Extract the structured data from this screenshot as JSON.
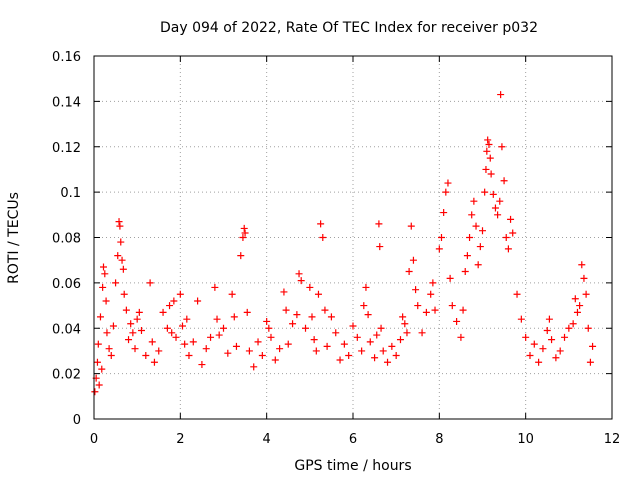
{
  "chart_data": {
    "type": "scatter",
    "title": "Day 094 of 2022, Rate Of TEC Index for receiver p032",
    "xlabel": "GPS time / hours",
    "ylabel": "ROTI / TECUs",
    "xlim": [
      0,
      12
    ],
    "ylim": [
      0,
      0.16
    ],
    "xticks": [
      0,
      2,
      4,
      6,
      8,
      10,
      12
    ],
    "yticks": [
      0,
      0.02,
      0.04,
      0.06,
      0.08,
      0.1,
      0.12,
      0.14,
      0.16
    ],
    "xtick_labels": [
      "0",
      "2",
      "4",
      "6",
      "8",
      "10",
      "12"
    ],
    "ytick_labels": [
      "0",
      "0.02",
      "0.04",
      "0.06",
      "0.08",
      "0.1",
      "0.12",
      "0.14",
      "0.16"
    ],
    "grid": true,
    "marker": "plus",
    "color": "#ff0000",
    "series": [
      {
        "name": "ROTI",
        "points": [
          [
            0.02,
            0.012
          ],
          [
            0.05,
            0.018
          ],
          [
            0.08,
            0.025
          ],
          [
            0.1,
            0.033
          ],
          [
            0.12,
            0.015
          ],
          [
            0.15,
            0.045
          ],
          [
            0.18,
            0.022
          ],
          [
            0.2,
            0.058
          ],
          [
            0.22,
            0.067
          ],
          [
            0.25,
            0.064
          ],
          [
            0.28,
            0.052
          ],
          [
            0.3,
            0.038
          ],
          [
            0.35,
            0.031
          ],
          [
            0.4,
            0.028
          ],
          [
            0.45,
            0.041
          ],
          [
            0.5,
            0.06
          ],
          [
            0.55,
            0.072
          ],
          [
            0.58,
            0.087
          ],
          [
            0.6,
            0.085
          ],
          [
            0.62,
            0.078
          ],
          [
            0.65,
            0.07
          ],
          [
            0.68,
            0.066
          ],
          [
            0.7,
            0.055
          ],
          [
            0.75,
            0.048
          ],
          [
            0.8,
            0.035
          ],
          [
            0.85,
            0.042
          ],
          [
            0.9,
            0.038
          ],
          [
            0.95,
            0.031
          ],
          [
            1.0,
            0.044
          ],
          [
            1.05,
            0.047
          ],
          [
            1.1,
            0.039
          ],
          [
            1.2,
            0.028
          ],
          [
            1.3,
            0.06
          ],
          [
            1.35,
            0.034
          ],
          [
            1.4,
            0.025
          ],
          [
            1.5,
            0.03
          ],
          [
            1.6,
            0.047
          ],
          [
            1.7,
            0.04
          ],
          [
            1.75,
            0.05
          ],
          [
            1.8,
            0.038
          ],
          [
            1.85,
            0.052
          ],
          [
            1.9,
            0.036
          ],
          [
            2.0,
            0.055
          ],
          [
            2.05,
            0.041
          ],
          [
            2.1,
            0.033
          ],
          [
            2.15,
            0.044
          ],
          [
            2.2,
            0.028
          ],
          [
            2.3,
            0.034
          ],
          [
            2.4,
            0.052
          ],
          [
            2.5,
            0.024
          ],
          [
            2.6,
            0.031
          ],
          [
            2.7,
            0.036
          ],
          [
            2.8,
            0.058
          ],
          [
            2.85,
            0.044
          ],
          [
            2.9,
            0.037
          ],
          [
            3.0,
            0.04
          ],
          [
            3.1,
            0.029
          ],
          [
            3.2,
            0.055
          ],
          [
            3.25,
            0.045
          ],
          [
            3.3,
            0.032
          ],
          [
            3.4,
            0.072
          ],
          [
            3.45,
            0.08
          ],
          [
            3.48,
            0.084
          ],
          [
            3.5,
            0.082
          ],
          [
            3.55,
            0.047
          ],
          [
            3.6,
            0.03
          ],
          [
            3.7,
            0.023
          ],
          [
            3.8,
            0.034
          ],
          [
            3.9,
            0.028
          ],
          [
            4.0,
            0.043
          ],
          [
            4.05,
            0.04
          ],
          [
            4.1,
            0.036
          ],
          [
            4.2,
            0.026
          ],
          [
            4.3,
            0.031
          ],
          [
            4.4,
            0.056
          ],
          [
            4.45,
            0.048
          ],
          [
            4.5,
            0.033
          ],
          [
            4.6,
            0.042
          ],
          [
            4.7,
            0.046
          ],
          [
            4.75,
            0.064
          ],
          [
            4.8,
            0.061
          ],
          [
            4.9,
            0.04
          ],
          [
            5.0,
            0.058
          ],
          [
            5.05,
            0.045
          ],
          [
            5.1,
            0.035
          ],
          [
            5.15,
            0.03
          ],
          [
            5.2,
            0.055
          ],
          [
            5.25,
            0.086
          ],
          [
            5.3,
            0.08
          ],
          [
            5.35,
            0.048
          ],
          [
            5.4,
            0.032
          ],
          [
            5.5,
            0.045
          ],
          [
            5.6,
            0.038
          ],
          [
            5.7,
            0.026
          ],
          [
            5.8,
            0.033
          ],
          [
            5.9,
            0.028
          ],
          [
            6.0,
            0.041
          ],
          [
            6.1,
            0.036
          ],
          [
            6.2,
            0.03
          ],
          [
            6.25,
            0.05
          ],
          [
            6.3,
            0.058
          ],
          [
            6.35,
            0.046
          ],
          [
            6.4,
            0.034
          ],
          [
            6.5,
            0.027
          ],
          [
            6.55,
            0.037
          ],
          [
            6.6,
            0.086
          ],
          [
            6.62,
            0.076
          ],
          [
            6.65,
            0.04
          ],
          [
            6.7,
            0.03
          ],
          [
            6.8,
            0.025
          ],
          [
            6.9,
            0.032
          ],
          [
            7.0,
            0.028
          ],
          [
            7.1,
            0.035
          ],
          [
            7.15,
            0.045
          ],
          [
            7.2,
            0.042
          ],
          [
            7.25,
            0.038
          ],
          [
            7.3,
            0.065
          ],
          [
            7.35,
            0.085
          ],
          [
            7.4,
            0.07
          ],
          [
            7.45,
            0.057
          ],
          [
            7.5,
            0.05
          ],
          [
            7.6,
            0.038
          ],
          [
            7.7,
            0.047
          ],
          [
            7.8,
            0.055
          ],
          [
            7.85,
            0.06
          ],
          [
            7.9,
            0.048
          ],
          [
            8.0,
            0.075
          ],
          [
            8.05,
            0.08
          ],
          [
            8.1,
            0.091
          ],
          [
            8.15,
            0.1
          ],
          [
            8.2,
            0.104
          ],
          [
            8.25,
            0.062
          ],
          [
            8.3,
            0.05
          ],
          [
            8.4,
            0.043
          ],
          [
            8.5,
            0.036
          ],
          [
            8.55,
            0.048
          ],
          [
            8.6,
            0.065
          ],
          [
            8.65,
            0.072
          ],
          [
            8.7,
            0.08
          ],
          [
            8.75,
            0.09
          ],
          [
            8.8,
            0.096
          ],
          [
            8.85,
            0.085
          ],
          [
            8.9,
            0.068
          ],
          [
            8.95,
            0.076
          ],
          [
            9.0,
            0.083
          ],
          [
            9.05,
            0.1
          ],
          [
            9.08,
            0.11
          ],
          [
            9.1,
            0.118
          ],
          [
            9.12,
            0.123
          ],
          [
            9.15,
            0.121
          ],
          [
            9.18,
            0.115
          ],
          [
            9.2,
            0.108
          ],
          [
            9.25,
            0.099
          ],
          [
            9.3,
            0.093
          ],
          [
            9.35,
            0.09
          ],
          [
            9.4,
            0.096
          ],
          [
            9.42,
            0.143
          ],
          [
            9.45,
            0.12
          ],
          [
            9.5,
            0.105
          ],
          [
            9.55,
            0.08
          ],
          [
            9.6,
            0.075
          ],
          [
            9.65,
            0.088
          ],
          [
            9.7,
            0.082
          ],
          [
            9.8,
            0.055
          ],
          [
            9.9,
            0.044
          ],
          [
            10.0,
            0.036
          ],
          [
            10.1,
            0.028
          ],
          [
            10.2,
            0.033
          ],
          [
            10.3,
            0.025
          ],
          [
            10.4,
            0.031
          ],
          [
            10.5,
            0.039
          ],
          [
            10.55,
            0.044
          ],
          [
            10.6,
            0.035
          ],
          [
            10.7,
            0.027
          ],
          [
            10.8,
            0.03
          ],
          [
            10.9,
            0.036
          ],
          [
            11.0,
            0.04
          ],
          [
            11.1,
            0.042
          ],
          [
            11.15,
            0.053
          ],
          [
            11.2,
            0.047
          ],
          [
            11.25,
            0.05
          ],
          [
            11.3,
            0.068
          ],
          [
            11.35,
            0.062
          ],
          [
            11.4,
            0.055
          ],
          [
            11.45,
            0.04
          ],
          [
            11.5,
            0.025
          ],
          [
            11.55,
            0.032
          ]
        ]
      }
    ]
  }
}
